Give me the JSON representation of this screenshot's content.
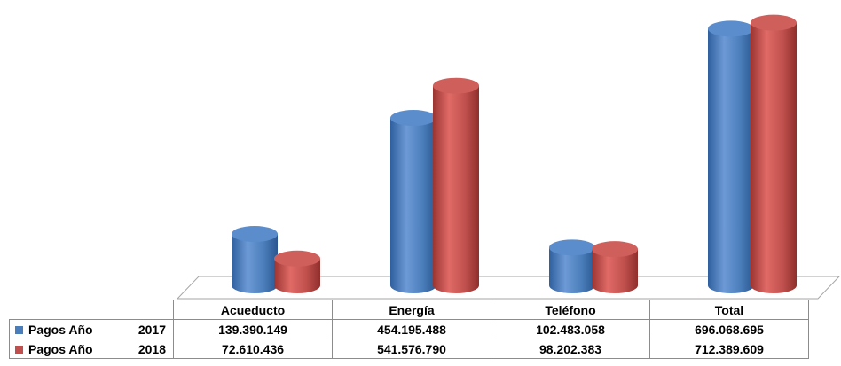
{
  "chart_data": {
    "type": "bar",
    "style": "3d-cylinder",
    "categories": [
      "Acueducto",
      "Energía",
      "Teléfono",
      "Total"
    ],
    "series": [
      {
        "name": "Pagos Año 2017",
        "label": "Pagos Año",
        "year": "2017",
        "color": "#4a7ebb",
        "values": [
          139390149,
          454195488,
          102483058,
          696068695
        ],
        "value_labels": [
          "139.390.149",
          "454.195.488",
          "102.483.058",
          "696.068.695"
        ]
      },
      {
        "name": "Pagos Año 2018",
        "label": "Pagos Año",
        "year": "2018",
        "color": "#c0504d",
        "values": [
          72610436,
          541576790,
          98202383,
          712389609
        ],
        "value_labels": [
          "72.610.436",
          "541.576.790",
          "98.202.383",
          "712.389.609"
        ]
      }
    ],
    "ylim": [
      0,
      750000000
    ],
    "grid": false,
    "legend": "data-table",
    "title": "",
    "xlabel": "",
    "ylabel": ""
  }
}
